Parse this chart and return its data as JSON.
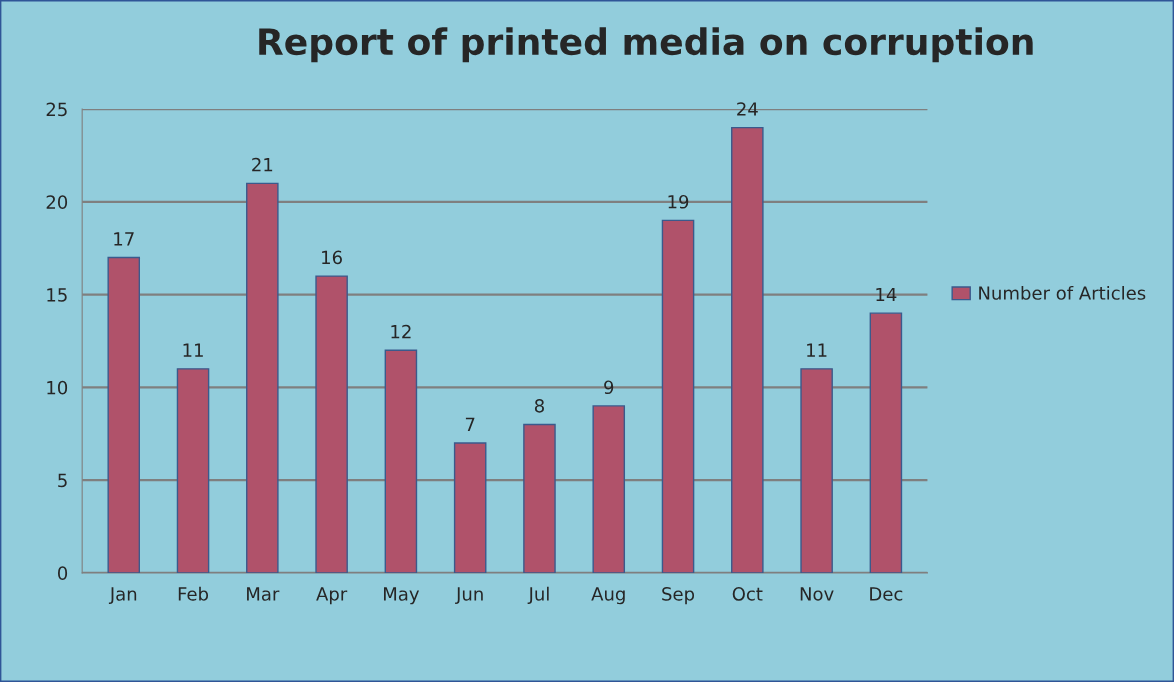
{
  "chart_data": {
    "type": "bar",
    "title": "Report of printed media on corruption",
    "categories": [
      "Jan",
      "Feb",
      "Mar",
      "Apr",
      "May",
      "Jun",
      "Jul",
      "Aug",
      "Sep",
      "Oct",
      "Nov",
      "Dec"
    ],
    "series": [
      {
        "name": "Number of Articles",
        "color": "#b0526a",
        "values": [
          17,
          11,
          21,
          16,
          12,
          7,
          8,
          9,
          19,
          24,
          11,
          14
        ]
      }
    ],
    "ylim": [
      0,
      25
    ],
    "yticks": [
      0,
      5,
      10,
      15,
      20,
      25
    ],
    "grid": "y",
    "legend": "right",
    "data_labels": true
  }
}
